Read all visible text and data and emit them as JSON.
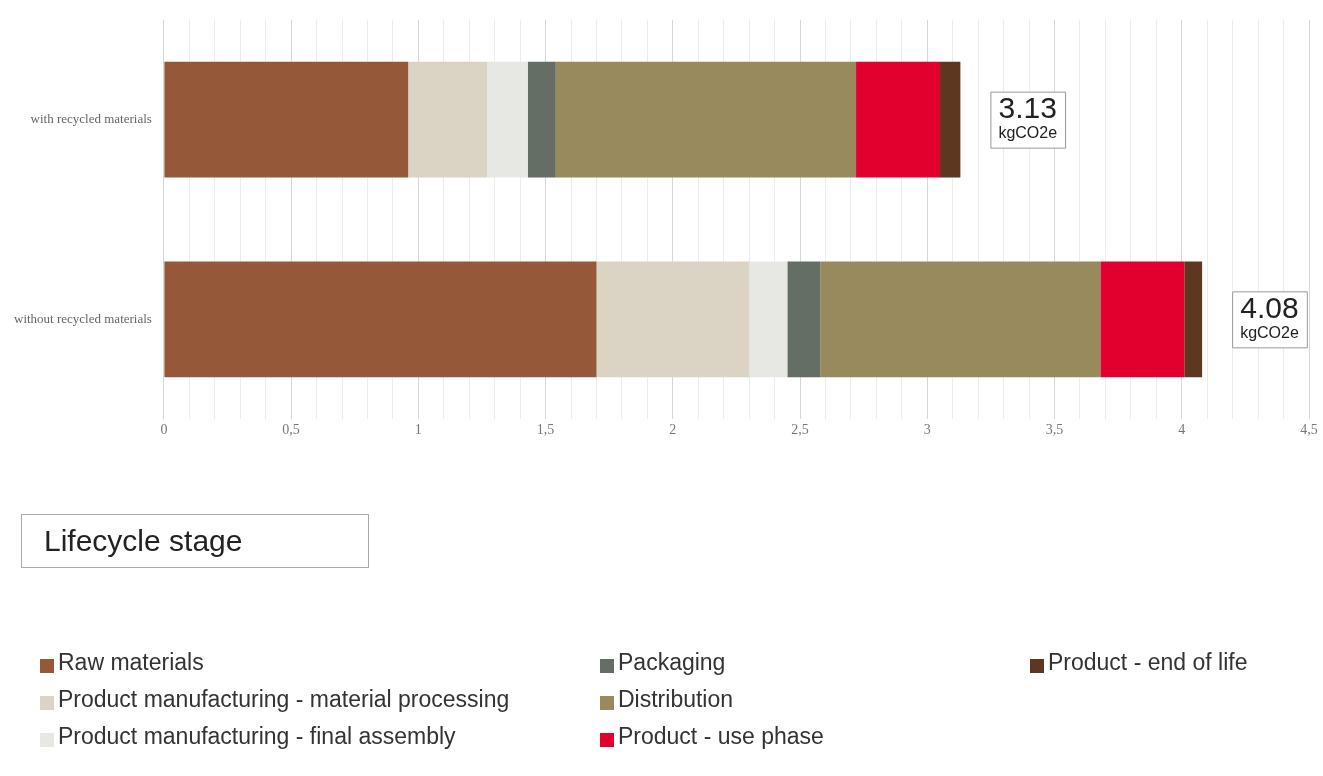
{
  "chart_data": {
    "type": "bar",
    "orientation": "horizontal",
    "stacked": true,
    "categories": [
      "with recycled materials",
      "without recycled materials"
    ],
    "series": [
      {
        "name": "Raw materials",
        "color": "#95593a",
        "values": [
          0.96,
          1.7
        ]
      },
      {
        "name": "Product manufacturing - material processing",
        "color": "#dbd3c3",
        "values": [
          0.31,
          0.6
        ]
      },
      {
        "name": "Product manufacturing - final assembly",
        "color": "#e7e7e3",
        "values": [
          0.16,
          0.15
        ]
      },
      {
        "name": "Packaging",
        "color": "#646e65",
        "values": [
          0.11,
          0.13
        ]
      },
      {
        "name": "Distribution",
        "color": "#998a5e",
        "values": [
          1.18,
          1.1
        ]
      },
      {
        "name": "Product - use phase",
        "color": "#e2002f",
        "values": [
          0.33,
          0.33
        ]
      },
      {
        "name": "Product - end of life",
        "color": "#5e3720",
        "values": [
          0.08,
          0.07
        ]
      }
    ],
    "xlim": [
      0,
      4.5
    ],
    "xticks": [
      0,
      {
        "value": 0.1,
        "label": null
      },
      {
        "value": 0.2,
        "label": null
      },
      {
        "value": 0.3,
        "label": null
      },
      {
        "value": 0.4,
        "label": null
      },
      {
        "value": 0.5,
        "label": "0,5"
      },
      {
        "value": 0.6,
        "label": null
      },
      {
        "value": 0.7,
        "label": null
      },
      {
        "value": 0.8,
        "label": null
      },
      {
        "value": 0.9,
        "label": null
      },
      1,
      {
        "value": 1.1,
        "label": null
      },
      {
        "value": 1.2,
        "label": null
      },
      {
        "value": 1.3,
        "label": null
      },
      {
        "value": 1.4,
        "label": null
      },
      {
        "value": 1.5,
        "label": "1,5"
      },
      {
        "value": 1.6,
        "label": null
      },
      {
        "value": 1.7,
        "label": null
      },
      {
        "value": 1.8,
        "label": null
      },
      {
        "value": 1.9,
        "label": null
      },
      2,
      {
        "value": 2.1,
        "label": null
      },
      {
        "value": 2.2,
        "label": null
      },
      {
        "value": 2.3,
        "label": null
      },
      {
        "value": 2.4,
        "label": null
      },
      {
        "value": 2.5,
        "label": "2,5"
      },
      {
        "value": 2.6,
        "label": null
      },
      {
        "value": 2.7,
        "label": null
      },
      {
        "value": 2.8,
        "label": null
      },
      {
        "value": 2.9,
        "label": null
      },
      3,
      {
        "value": 3.1,
        "label": null
      },
      {
        "value": 3.2,
        "label": null
      },
      {
        "value": 3.3,
        "label": null
      },
      {
        "value": 3.4,
        "label": null
      },
      {
        "value": 3.5,
        "label": "3,5"
      },
      {
        "value": 3.6,
        "label": null
      },
      {
        "value": 3.7,
        "label": null
      },
      {
        "value": 3.8,
        "label": null
      },
      {
        "value": 3.9,
        "label": null
      },
      4,
      {
        "value": 4.1,
        "label": null
      },
      {
        "value": 4.2,
        "label": null
      },
      {
        "value": 4.3,
        "label": null
      },
      {
        "value": 4.4,
        "label": null
      },
      {
        "value": 4.5,
        "label": "4,5"
      }
    ],
    "grid": "x",
    "legend": "bottom",
    "legend_title": "Lifecycle stage",
    "totals": [
      "3.13\nkgCO2e",
      "4.08\nkgCO2e"
    ]
  }
}
